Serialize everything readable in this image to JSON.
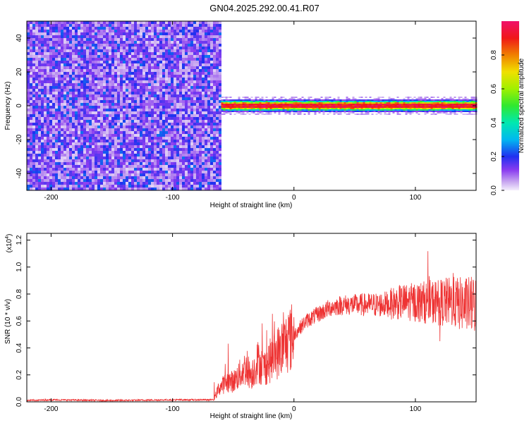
{
  "title": "GN04.2025.292.00.41.R07",
  "chart_data": [
    {
      "type": "heatmap",
      "xlabel": "Height of straight line (km)",
      "ylabel": "Frequency (Hz)",
      "xlim": [
        -220,
        150
      ],
      "ylim": [
        -50,
        50
      ],
      "xticks": [
        -200,
        -100,
        0,
        100
      ],
      "xtick_labels": [
        "-200",
        "-100",
        "0",
        "100"
      ],
      "yticks": [
        -40,
        -20,
        0,
        20,
        40
      ],
      "ytick_labels": [
        "-40",
        "-20",
        "0",
        "20",
        "40"
      ],
      "regions": [
        {
          "x": [
            -220,
            -60
          ],
          "y": [
            -50,
            50
          ],
          "amplitude": [
            0.05,
            0.35
          ]
        },
        {
          "x": [
            -60,
            150
          ],
          "y": [
            -3,
            3
          ],
          "amplitude": [
            0.5,
            1.0
          ]
        }
      ],
      "colorbar": {
        "label": "Normalized spectral amplitude",
        "range": [
          0,
          1
        ],
        "ticks": [
          0.0,
          0.2,
          0.4,
          0.6,
          0.8
        ],
        "tick_labels": [
          "0.0",
          "0.2",
          "0.4",
          "0.6",
          "0.8"
        ]
      }
    },
    {
      "type": "line",
      "xlabel": "Height of straight line (km)",
      "ylabel": "SNR (10 * v/v)",
      "yscale_label": "(x10",
      "yscale_exp": "4",
      "yscale_close": ")",
      "xlim": [
        -220,
        150
      ],
      "ylim": [
        0,
        1.25
      ],
      "xticks": [
        -200,
        -100,
        0,
        100
      ],
      "xtick_labels": [
        "-200",
        "-100",
        "0",
        "100"
      ],
      "yticks": [
        0,
        0.2,
        0.4,
        0.6,
        0.8,
        1.0,
        1.2
      ],
      "ytick_labels": [
        "0.0",
        "0.2",
        "0.4",
        "0.6",
        "0.8",
        "1.0",
        "1.2"
      ],
      "color": "#ee3333",
      "series": [
        {
          "x": [
            -220,
            -200,
            -150,
            -100,
            -66,
            -62,
            -55,
            -50,
            -45,
            -40,
            -35,
            -30,
            -25,
            -20,
            -15,
            -10,
            -5,
            0,
            10,
            20,
            30,
            40,
            50,
            60,
            70,
            80,
            90,
            100,
            110,
            120,
            130,
            140,
            150
          ],
          "values": [
            0.01,
            0.015,
            0.01,
            0.015,
            0.015,
            0.1,
            0.15,
            0.15,
            0.2,
            0.25,
            0.2,
            0.3,
            0.25,
            0.3,
            0.35,
            0.4,
            0.45,
            0.5,
            0.6,
            0.65,
            0.7,
            0.72,
            0.72,
            0.72,
            0.72,
            0.73,
            0.74,
            0.74,
            0.74,
            0.74,
            0.74,
            0.72,
            0.72
          ]
        }
      ]
    }
  ]
}
